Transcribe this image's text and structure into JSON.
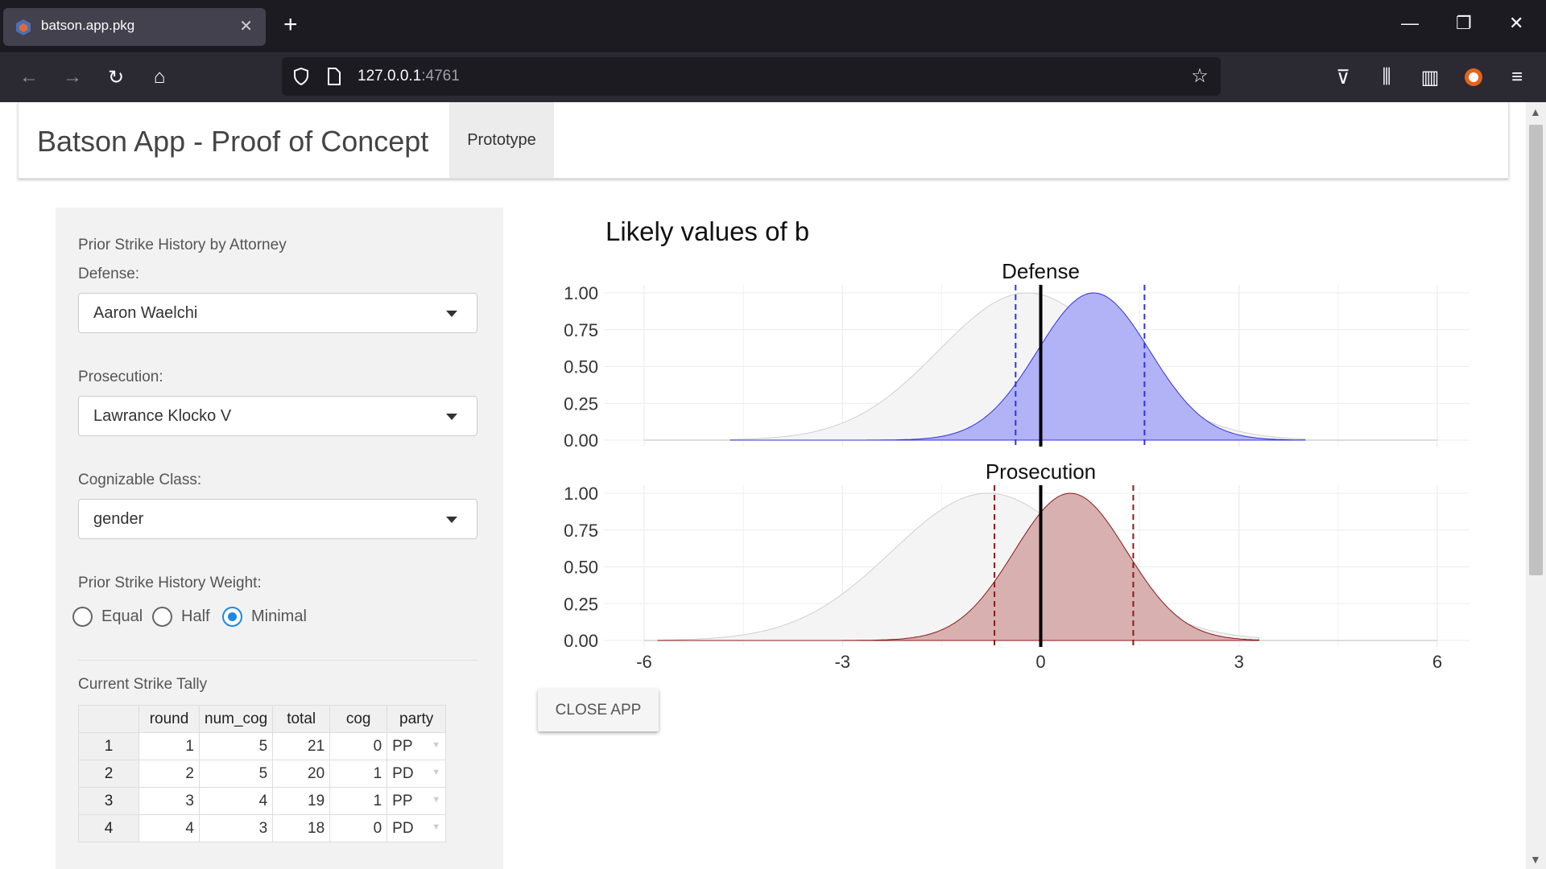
{
  "browser": {
    "tab_title": "batson.app.pkg",
    "url_host": "127.0.0.1",
    "url_port": ":4761",
    "icons": [
      "back-icon",
      "forward-icon",
      "reload-icon",
      "home-icon",
      "shield-icon",
      "page-icon",
      "star-icon",
      "pocket-icon",
      "library-icon",
      "sidebar-icon",
      "extension-icon",
      "menu-icon"
    ]
  },
  "app": {
    "title": "Batson App - Proof of Concept",
    "tab_prototype": "Prototype"
  },
  "sidebar": {
    "section_title": "Prior Strike History by Attorney",
    "defense_label": "Defense:",
    "defense_value": "Aaron Waelchi",
    "prosecution_label": "Prosecution:",
    "prosecution_value": "Lawrance Klocko V",
    "class_label": "Cognizable Class:",
    "class_value": "gender",
    "weight_label": "Prior Strike History Weight:",
    "weight_options": [
      "Equal",
      "Half",
      "Minimal"
    ],
    "weight_selected": "Minimal",
    "tally_title": "Current Strike Tally",
    "table": {
      "headers": [
        "",
        "round",
        "num_cog",
        "total",
        "cog",
        "party"
      ],
      "rows": [
        [
          "1",
          "1",
          "5",
          "21",
          "0",
          "PP"
        ],
        [
          "2",
          "2",
          "5",
          "20",
          "1",
          "PD"
        ],
        [
          "3",
          "3",
          "4",
          "19",
          "1",
          "PP"
        ],
        [
          "4",
          "4",
          "3",
          "18",
          "0",
          "PD"
        ]
      ]
    }
  },
  "close_button": "CLOSE APP",
  "chart_data": {
    "type": "area",
    "title": "Likely values of b",
    "x_ticks": [
      "-6",
      "-3",
      "0",
      "3",
      "6"
    ],
    "xlim": [
      -6,
      6
    ],
    "ylim": [
      0,
      1
    ],
    "y_ticks": [
      "0.00",
      "0.25",
      "0.50",
      "0.75",
      "1.00"
    ],
    "grid": true,
    "panels": [
      {
        "name": "Defense",
        "color": "#3333dd",
        "fill": "#b2b2f7",
        "prior": {
          "mean": -0.2,
          "sd": 1.35,
          "range": [
            -4.7,
            4.0
          ]
        },
        "posterior": {
          "mean": 0.8,
          "sd": 0.85,
          "range": [
            -4.7,
            4.0
          ]
        },
        "interval": [
          -0.38,
          1.57
        ],
        "zero_line": 0
      },
      {
        "name": "Prosecution",
        "color": "#8b1a1a",
        "fill": "#d8b0b0",
        "prior": {
          "mean": -0.8,
          "sd": 1.45,
          "range": [
            -5.8,
            3.3
          ]
        },
        "posterior": {
          "mean": 0.45,
          "sd": 0.85,
          "range": [
            -5.8,
            3.3
          ]
        },
        "interval": [
          -0.7,
          1.4
        ],
        "zero_line": 0
      }
    ]
  }
}
